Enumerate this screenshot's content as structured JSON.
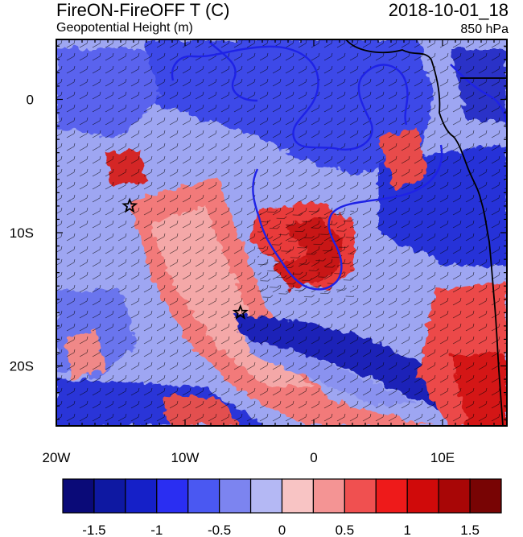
{
  "title_left": "FireON-FireOFF T (C)",
  "title_right": "2018-10-01_18",
  "subtitle_left": "Geopotential Height (m)",
  "subtitle_right": "850 hPa",
  "map": {
    "lon_range": [
      -20,
      15
    ],
    "lat_range": [
      -24.5,
      4.5
    ],
    "x_ticks": [
      {
        "lon": -20,
        "label": "20W"
      },
      {
        "lon": -10,
        "label": "10W"
      },
      {
        "lon": 0,
        "label": "0"
      },
      {
        "lon": 10,
        "label": "10E"
      }
    ],
    "y_ticks": [
      {
        "lat": 0,
        "label": "0"
      },
      {
        "lat": -10,
        "label": "10S"
      },
      {
        "lat": -20,
        "label": "20S"
      }
    ],
    "stars": [
      {
        "lon": -14.3,
        "lat": -8.0
      },
      {
        "lon": -5.7,
        "lat": -16.0
      }
    ]
  },
  "colorbar": {
    "colors": [
      "#0a0a78",
      "#0e18a2",
      "#1520c8",
      "#2a2ef2",
      "#4a58f2",
      "#7c84f0",
      "#b4b8f4",
      "#f8c4c4",
      "#f49494",
      "#f05050",
      "#ee1a1a",
      "#d00a0a",
      "#a80606",
      "#780404"
    ],
    "labels": [
      "-1.5",
      "-1",
      "-0.5",
      "0",
      "0.5",
      "1",
      "1.5"
    ]
  }
}
